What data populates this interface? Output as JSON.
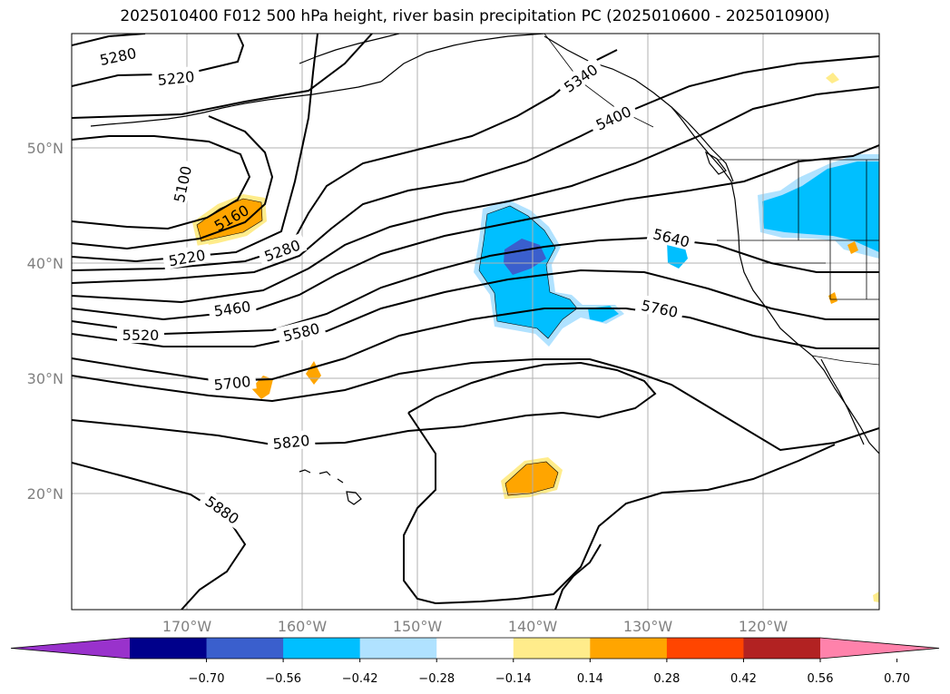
{
  "title": "2025010400 F012 500 hPa height, river basin precipitation PC (2025010600 - 2025010900)",
  "map": {
    "lat_labels": [
      "50°N",
      "40°N",
      "30°N",
      "20°N"
    ],
    "lon_labels": [
      "170°W",
      "160°W",
      "150°W",
      "140°W",
      "130°W",
      "120°W"
    ],
    "contour_labels": [
      "5280",
      "5220",
      "5100",
      "5160",
      "5220",
      "5280",
      "5340",
      "5400",
      "5460",
      "5520",
      "5580",
      "5640",
      "5700",
      "5760",
      "5820",
      "5880"
    ],
    "contour_color": "#000000",
    "grid_color": "#b0b0b0",
    "coast_color": "#000000"
  },
  "colorbar": {
    "ticks": [
      "−0.70",
      "−0.56",
      "−0.42",
      "−0.28",
      "−0.14",
      "0.14",
      "0.28",
      "0.42",
      "0.56",
      "0.70"
    ],
    "colors": [
      "#9932cc",
      "#00008b",
      "#3a5fcd",
      "#00bfff",
      "#b0e2ff",
      "#ffffff",
      "#ffec8b",
      "#ffa500",
      "#ff4500",
      "#b22222",
      "#ff82ab"
    ]
  }
}
